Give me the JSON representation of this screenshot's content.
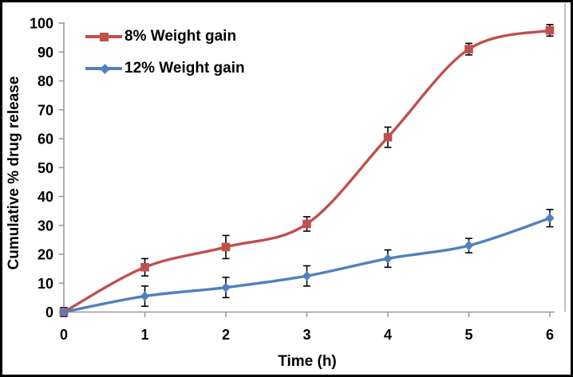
{
  "chart_data": {
    "type": "line",
    "title": "",
    "xlabel": "Time (h)",
    "ylabel": "Cumulative % drug release",
    "x": [
      0,
      1,
      2,
      3,
      4,
      5,
      6
    ],
    "xticks": [
      "0",
      "1",
      "2",
      "3",
      "4",
      "5",
      "6"
    ],
    "yticks": [
      "0",
      "10",
      "20",
      "30",
      "40",
      "50",
      "60",
      "70",
      "80",
      "90",
      "100"
    ],
    "xlim": [
      0,
      6
    ],
    "ylim": [
      0,
      100
    ],
    "grid": false,
    "line_style": "smooth",
    "legend_position": "top-left-inside",
    "axis_color": "#969696",
    "error_bar_color": "#000000",
    "plot_border_color": "#a6a6a6",
    "series": [
      {
        "name": "8% Weight gain",
        "color": "#C0504D",
        "marker": "square",
        "values": [
          0,
          15.5,
          22.5,
          30.5,
          60.5,
          91,
          97.5
        ],
        "errors": [
          1.5,
          3,
          4,
          2.5,
          3.5,
          2,
          2
        ]
      },
      {
        "name": "12% Weight gain",
        "color": "#4F81BD",
        "marker": "diamond",
        "values": [
          0,
          5.5,
          8.5,
          12.5,
          18.5,
          23,
          32.5
        ],
        "errors": [
          1.5,
          3.5,
          3.5,
          3.5,
          3,
          2.5,
          3
        ]
      }
    ]
  }
}
